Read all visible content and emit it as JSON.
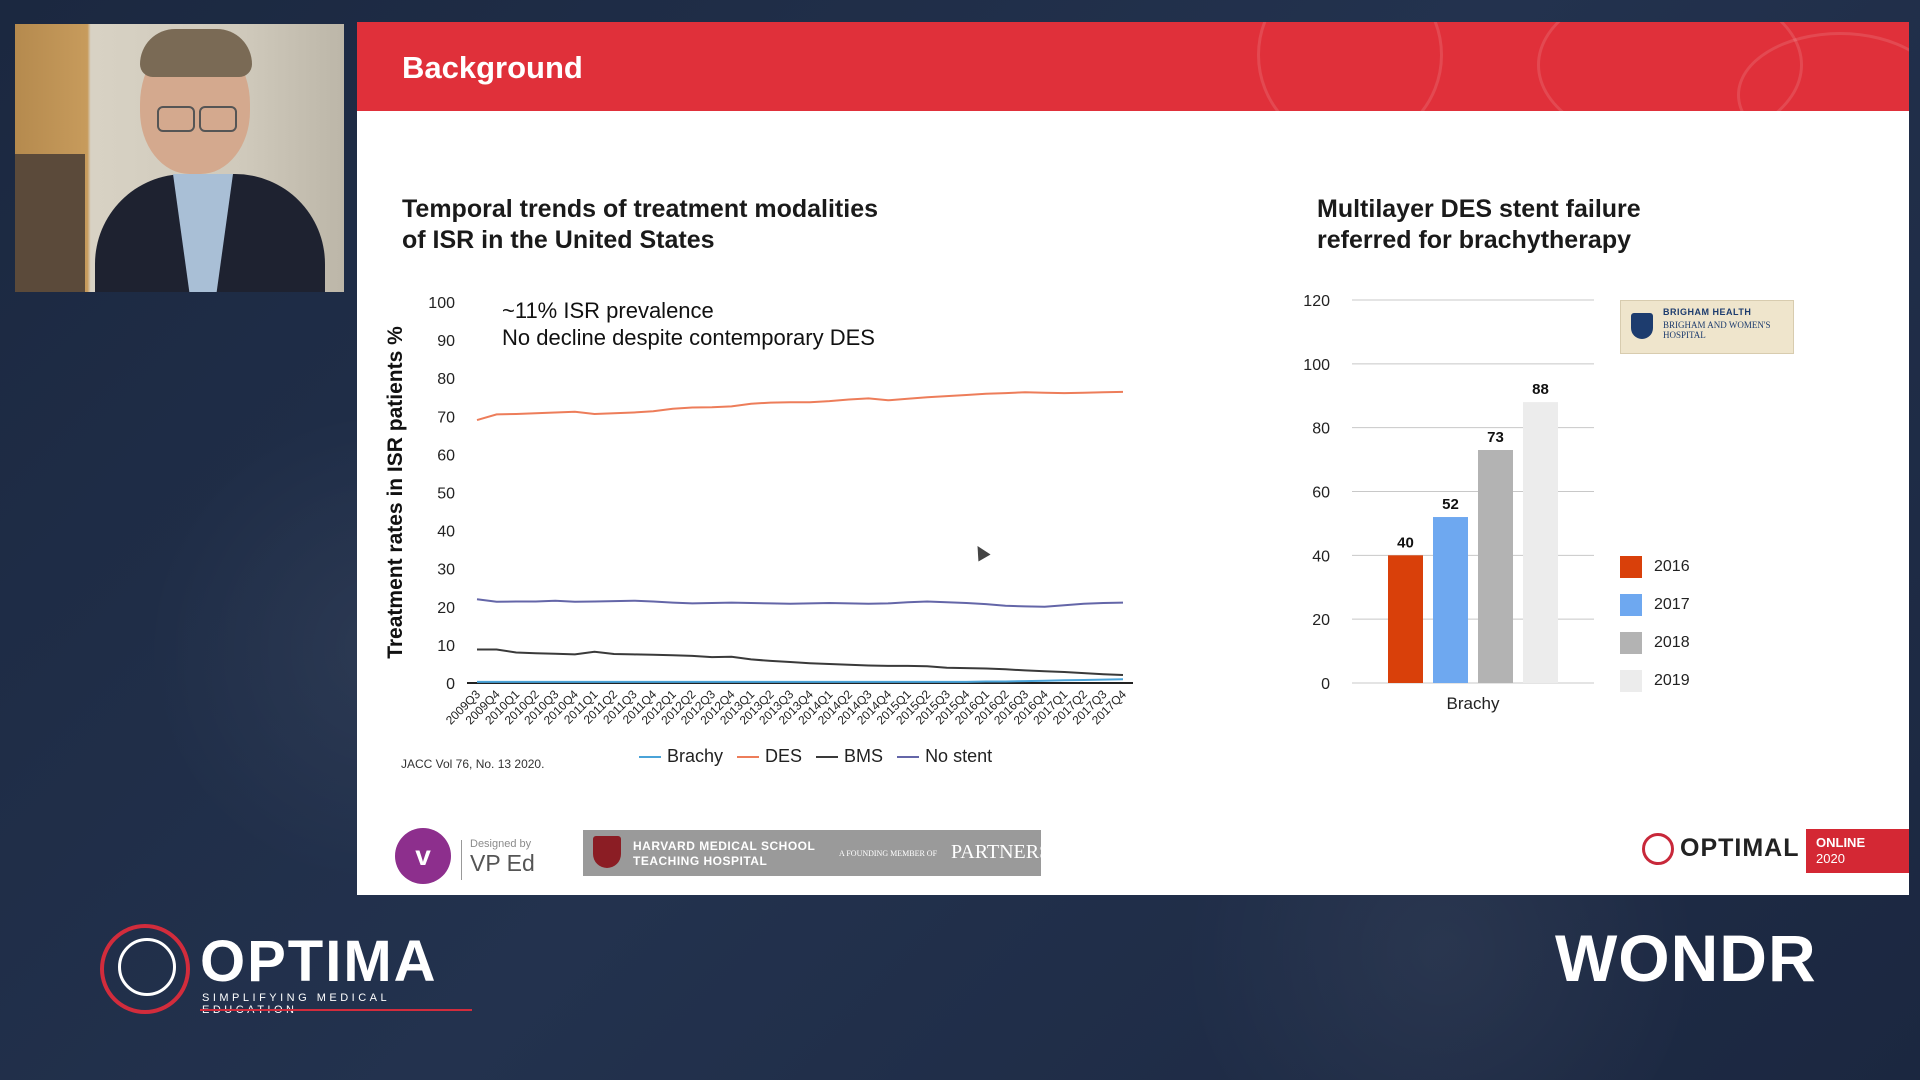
{
  "slide": {
    "title": "Background",
    "left_chart_title_1": "Temporal trends of treatment modalities",
    "left_chart_title_2": "of ISR in the United States",
    "right_chart_title_1": "Multilayer DES stent failure",
    "right_chart_title_2": "referred for brachytherapy",
    "note_1": "~11% ISR prevalence",
    "note_2": "No decline despite contemporary DES",
    "reference": "JACC Vol 76, No. 13 2020."
  },
  "logos": {
    "brigham_line1": "BRIGHAM HEALTH",
    "brigham_line2": "BRIGHAM AND WOMEN'S HOSPITAL",
    "vp_designed_by": "Designed by",
    "vp_ed": "VP Ed",
    "harvard_line1": "HARVARD MEDICAL SCHOOL",
    "harvard_line2": "TEACHING HOSPITAL",
    "harvard_member": "A FOUNDING MEMBER OF",
    "harvard_partners": "PARTNERS.",
    "optimal_slide": "OPTIMAL",
    "online_line1": "ONLINE",
    "online_line2": "2020",
    "optima_bottom": "OPTIMA",
    "optima_sub": "SIMPLIFYING MEDICAL EDUCATION",
    "wondr": "WONDR"
  },
  "chart_data": [
    {
      "type": "line",
      "ylabel": "Treatment rates in ISR patients %",
      "ylim": [
        0,
        100
      ],
      "yticks": [
        0,
        10,
        20,
        30,
        40,
        50,
        60,
        70,
        80,
        90,
        100
      ],
      "x": [
        "2009Q3",
        "2009Q4",
        "2010Q1",
        "2010Q2",
        "2010Q3",
        "2010Q4",
        "2011Q1",
        "2011Q2",
        "2011Q3",
        "2011Q4",
        "2012Q1",
        "2012Q2",
        "2012Q3",
        "2012Q4",
        "2013Q1",
        "2013Q2",
        "2013Q3",
        "2013Q4",
        "2014Q1",
        "2014Q2",
        "2014Q3",
        "2014Q4",
        "2015Q1",
        "2015Q2",
        "2015Q3",
        "2015Q4",
        "2016Q1",
        "2016Q2",
        "2016Q3",
        "2016Q4",
        "2017Q1",
        "2017Q2",
        "2017Q3",
        "2017Q4"
      ],
      "series": [
        {
          "name": "Brachy",
          "color": "#4aa3d8",
          "values": [
            0.3,
            0.3,
            0.3,
            0.3,
            0.3,
            0.3,
            0.3,
            0.3,
            0.3,
            0.3,
            0.3,
            0.3,
            0.3,
            0.3,
            0.3,
            0.3,
            0.3,
            0.3,
            0.3,
            0.3,
            0.3,
            0.3,
            0.3,
            0.3,
            0.3,
            0.3,
            0.4,
            0.4,
            0.5,
            0.6,
            0.7,
            0.8,
            0.9,
            1.0
          ]
        },
        {
          "name": "DES",
          "color": "#ed7d5a",
          "values": [
            69,
            70.5,
            70.6,
            70.8,
            71,
            71.2,
            70.6,
            70.8,
            71,
            71.3,
            72,
            72.3,
            72.4,
            72.6,
            73.3,
            73.6,
            73.7,
            73.7,
            74,
            74.4,
            74.7,
            74.2,
            74.6,
            75,
            75.3,
            75.6,
            75.9,
            76.1,
            76.3,
            76.2,
            76.1,
            76.2,
            76.3,
            76.4
          ]
        },
        {
          "name": "BMS",
          "color": "#3a3a3a",
          "values": [
            8.8,
            8.8,
            8,
            7.8,
            7.7,
            7.5,
            8.2,
            7.6,
            7.5,
            7.4,
            7.3,
            7.1,
            6.8,
            6.9,
            6.2,
            5.8,
            5.5,
            5.2,
            5,
            4.8,
            4.6,
            4.5,
            4.5,
            4.4,
            4,
            3.9,
            3.8,
            3.6,
            3.3,
            3.1,
            2.9,
            2.6,
            2.3,
            2.1
          ]
        },
        {
          "name": "No stent",
          "color": "#6466a8",
          "values": [
            22,
            21.3,
            21.4,
            21.4,
            21.6,
            21.3,
            21.4,
            21.5,
            21.6,
            21.4,
            21.1,
            20.9,
            21,
            21.1,
            21,
            20.9,
            20.8,
            20.9,
            21,
            20.9,
            20.8,
            20.9,
            21.2,
            21.4,
            21.2,
            21,
            20.7,
            20.3,
            20.1,
            20,
            20.4,
            20.8,
            21,
            21.1
          ]
        }
      ]
    },
    {
      "type": "bar",
      "categories": [
        "Brachy"
      ],
      "ylim": [
        0,
        120
      ],
      "yticks": [
        0,
        20,
        40,
        60,
        80,
        100,
        120
      ],
      "grid": true,
      "legend": "right",
      "series": [
        {
          "name": "2016",
          "color": "#d9400a",
          "values": [
            40
          ]
        },
        {
          "name": "2017",
          "color": "#6ea8f0",
          "values": [
            52
          ]
        },
        {
          "name": "2018",
          "color": "#b3b3b3",
          "values": [
            73
          ]
        },
        {
          "name": "2019",
          "color": "#ececec",
          "values": [
            88
          ]
        }
      ]
    }
  ]
}
